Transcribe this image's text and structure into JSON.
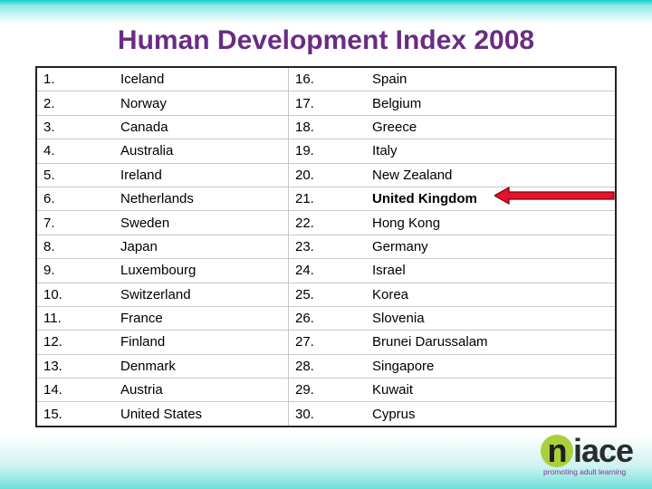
{
  "title": "Human Development Index 2008",
  "rows": [
    {
      "r1": "1.",
      "c1": "Iceland",
      "r2": "16.",
      "c2": "Spain"
    },
    {
      "r1": "2.",
      "c1": "Norway",
      "r2": "17.",
      "c2": "Belgium"
    },
    {
      "r1": "3.",
      "c1": "Canada",
      "r2": "18.",
      "c2": "Greece"
    },
    {
      "r1": "4.",
      "c1": "Australia",
      "r2": "19.",
      "c2": "Italy"
    },
    {
      "r1": "5.",
      "c1": "Ireland",
      "r2": "20.",
      "c2": "New Zealand"
    },
    {
      "r1": "6.",
      "c1": "Netherlands",
      "r2": "21.",
      "c2": "United Kingdom"
    },
    {
      "r1": "7.",
      "c1": "Sweden",
      "r2": "22.",
      "c2": "Hong Kong"
    },
    {
      "r1": "8.",
      "c1": "Japan",
      "r2": "23.",
      "c2": "Germany"
    },
    {
      "r1": "9.",
      "c1": "Luxembourg",
      "r2": "24.",
      "c2": "Israel"
    },
    {
      "r1": "10.",
      "c1": "Switzerland",
      "r2": "25.",
      "c2": "Korea"
    },
    {
      "r1": "11.",
      "c1": "France",
      "r2": "26.",
      "c2": "Slovenia"
    },
    {
      "r1": "12.",
      "c1": "Finland",
      "r2": "27.",
      "c2": "Brunei Darussalam"
    },
    {
      "r1": "13.",
      "c1": "Denmark",
      "r2": "28.",
      "c2": "Singapore"
    },
    {
      "r1": "14.",
      "c1": "Austria",
      "r2": "29.",
      "c2": "Kuwait"
    },
    {
      "r1": "15.",
      "c1": "United States",
      "r2": "30.",
      "c2": "Cyprus"
    }
  ],
  "highlight_row": 5,
  "arrow_color": "#e8102a",
  "logo": {
    "initial": "n",
    "rest": "iace",
    "tagline": "promoting adult learning"
  }
}
